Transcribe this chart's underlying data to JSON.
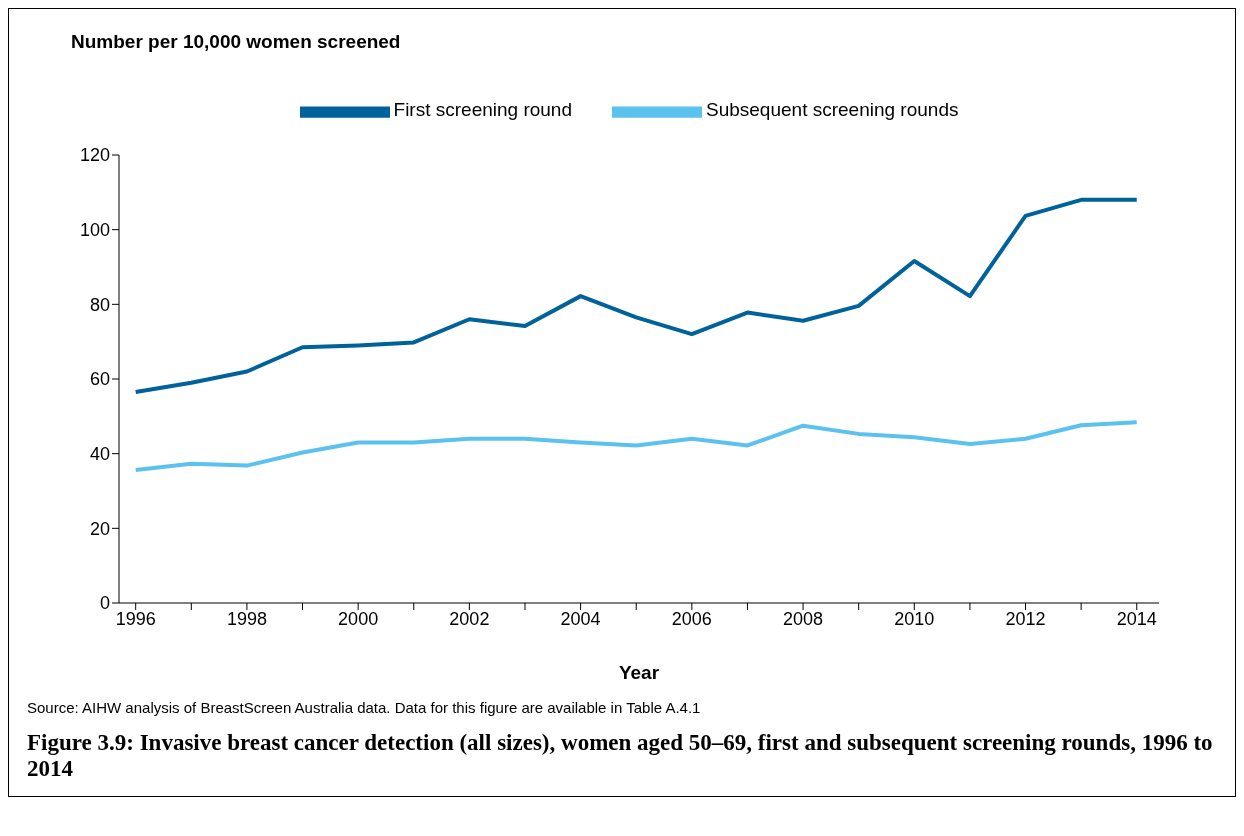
{
  "chart_data": {
    "type": "line",
    "title": "Figure 3.9: Invasive breast cancer detection (all sizes), women aged 50–69, first and subsequent screening rounds, 1996 to 2014",
    "ylabel": "Number per 10,000 women screened",
    "xlabel": "Year",
    "annotations": [
      "Source: AIHW analysis of BreastScreen Australia data. Data for this figure are available in Table A.4.1"
    ],
    "x": [
      1996,
      1997,
      1998,
      1999,
      2000,
      2001,
      2002,
      2003,
      2004,
      2005,
      2006,
      2007,
      2008,
      2009,
      2010,
      2011,
      2012,
      2013,
      2014
    ],
    "series": [
      {
        "name": "First screening round",
        "color": "#00629b",
        "values": [
          56.5,
          59,
          62,
          68.5,
          69,
          69.8,
          76,
          74.2,
          82.2,
          76.5,
          72,
          77.8,
          75.6,
          79.6,
          91.6,
          82.2,
          103.7,
          108,
          108
        ]
      },
      {
        "name": "Subsequent screening rounds",
        "color": "#5bc2ef",
        "values": [
          35.6,
          37.3,
          36.8,
          40.3,
          43,
          43,
          44,
          44,
          43,
          42.2,
          44,
          42.2,
          47.5,
          45.3,
          44.4,
          42.6,
          44,
          47.6,
          48.4
        ]
      }
    ],
    "xlim": [
      1995.7,
      2014.4
    ],
    "xticks": [
      1996,
      {
        "value": 1997,
        "label": null
      },
      1998,
      {
        "value": 1999,
        "label": null
      },
      2000,
      {
        "value": 2001,
        "label": null
      },
      2002,
      {
        "value": 2003,
        "label": null
      },
      2004,
      {
        "value": 2005,
        "label": null
      },
      2006,
      {
        "value": 2007,
        "label": null
      },
      2008,
      {
        "value": 2009,
        "label": null
      },
      2010,
      {
        "value": 2011,
        "label": null
      },
      2012,
      {
        "value": 2013,
        "label": null
      },
      2014
    ],
    "ylim": [
      0,
      120
    ],
    "yticks": [
      0,
      20,
      40,
      60,
      80,
      100,
      120
    ],
    "grid": false,
    "legend": "top",
    "marker": "none",
    "line_style": "solid"
  }
}
